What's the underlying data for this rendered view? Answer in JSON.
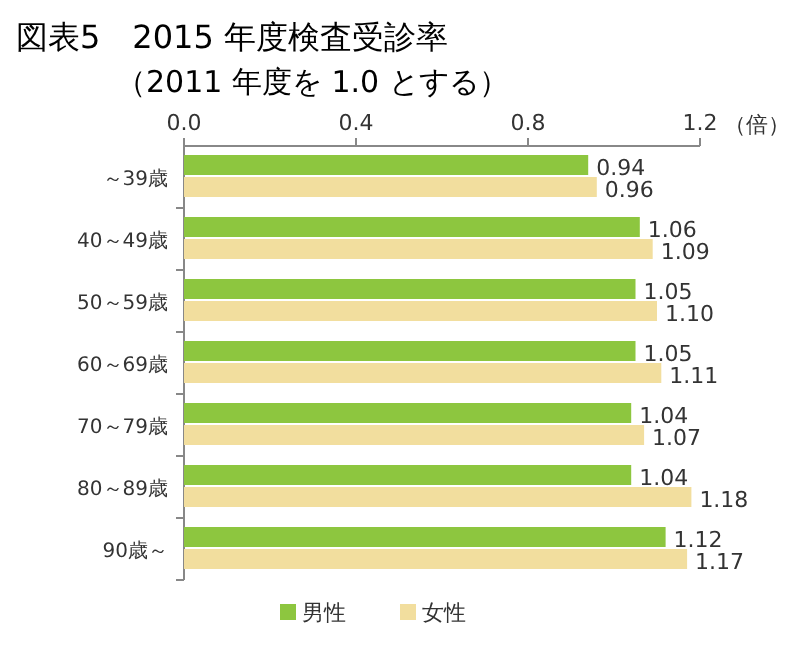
{
  "chart_data": {
    "type": "bar",
    "orientation": "horizontal",
    "title": "図表5　2015 年度検査受診率",
    "subtitle": "（2011 年度を 1.0 とする）",
    "xlabel": "（倍）",
    "categories": [
      "～39歳",
      "40～49歳",
      "50～59歳",
      "60～69歳",
      "70～79歳",
      "80～89歳",
      "90歳～"
    ],
    "series": [
      {
        "name": "男性",
        "color": "#8dc63f",
        "values": [
          0.94,
          1.06,
          1.05,
          1.05,
          1.04,
          1.04,
          1.12
        ],
        "value_labels": [
          "0.94",
          "1.06",
          "1.05",
          "1.05",
          "1.04",
          "1.04",
          "1.12"
        ]
      },
      {
        "name": "女性",
        "color": "#f2de9e",
        "values": [
          0.96,
          1.09,
          1.1,
          1.11,
          1.07,
          1.18,
          1.17
        ],
        "value_labels": [
          "0.96",
          "1.09",
          "1.10",
          "1.11",
          "1.07",
          "1.18",
          "1.17"
        ]
      }
    ],
    "xlim": [
      0,
      1.2
    ],
    "xticks": [
      {
        "value": 0,
        "label": "0.0"
      },
      0.4,
      0.8,
      1.2
    ],
    "grid": false,
    "legend": "bottom"
  }
}
